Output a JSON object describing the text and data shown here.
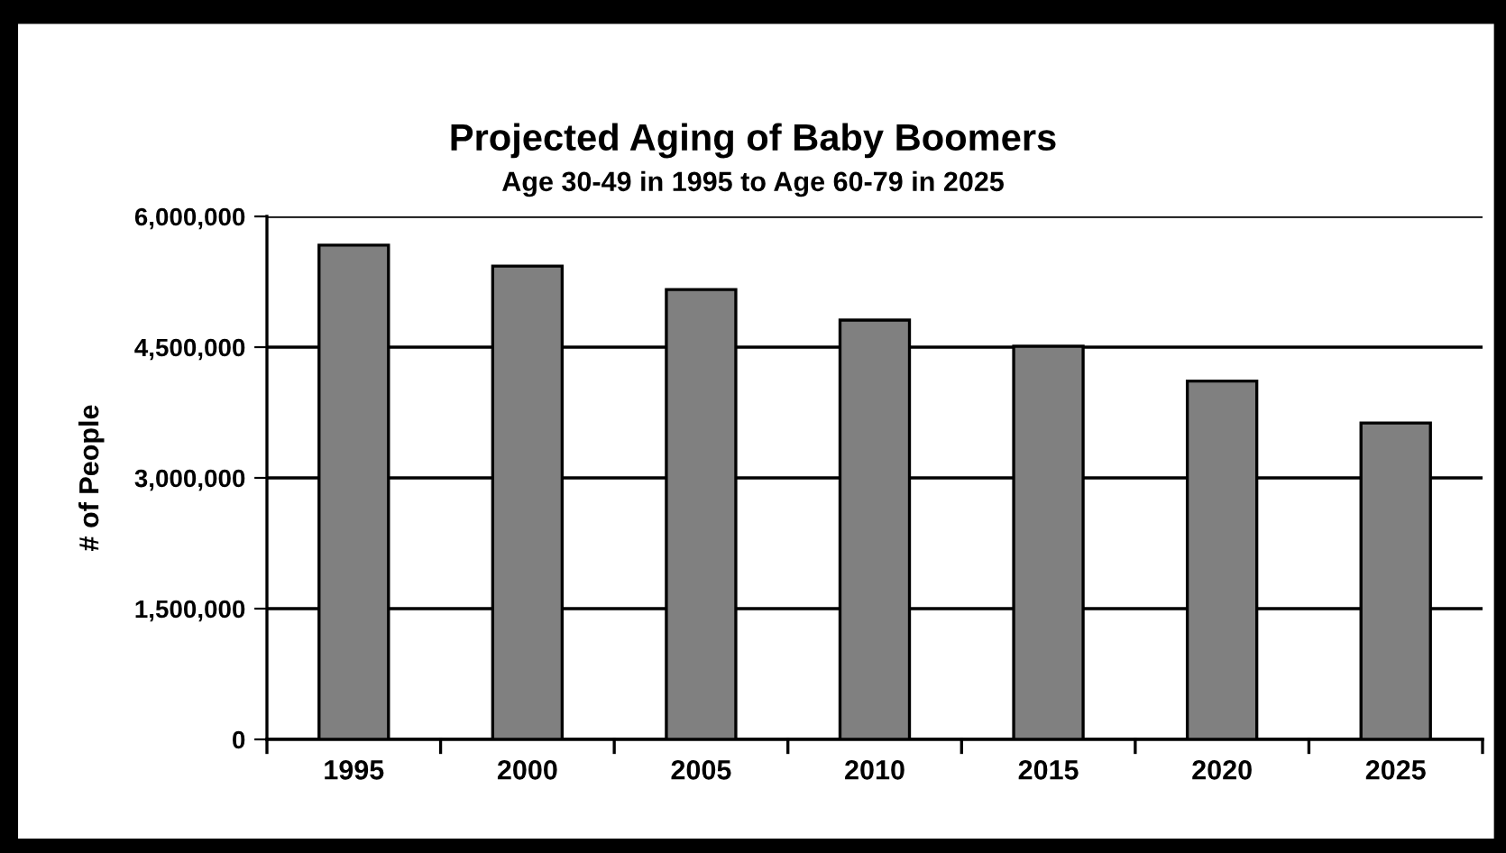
{
  "chart_data": {
    "type": "bar",
    "title": "Projected Aging of Baby Boomers",
    "subtitle": "Age 30-49 in 1995 to Age 60-79 in 2025",
    "ylabel": "# of People",
    "categories": [
      "1995",
      "2000",
      "2005",
      "2010",
      "2015",
      "2020",
      "2025"
    ],
    "values": [
      5670000,
      5430000,
      5160000,
      4810000,
      4510000,
      4110000,
      3630000
    ],
    "color": "#808080",
    "ylim": [
      0,
      6000000
    ],
    "yticks": [
      {
        "value": 0,
        "label": "0"
      },
      {
        "value": 1500000,
        "label": "1,500,000"
      },
      {
        "value": 3000000,
        "label": "3,000,000"
      },
      {
        "value": 4500000,
        "label": "4,500,000"
      },
      {
        "value": 6000000,
        "label": "6,000,000"
      }
    ],
    "grid": "y",
    "legend": false
  }
}
